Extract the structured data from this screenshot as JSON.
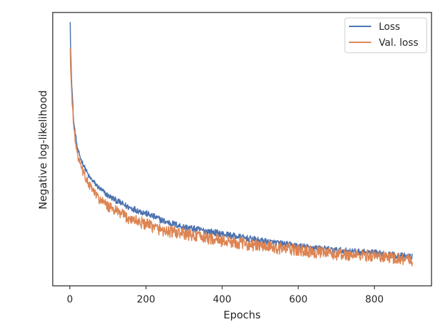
{
  "chart_data": {
    "type": "line",
    "xlabel": "Epochs",
    "ylabel": "Negative log-likelihood",
    "xlim": [
      -45,
      950
    ],
    "ylim": [
      0,
      1
    ],
    "x_ticks": [
      {
        "value": 0,
        "label": "0"
      },
      {
        "value": 200,
        "label": "200"
      },
      {
        "value": 400,
        "label": "400"
      },
      {
        "value": 600,
        "label": "600"
      },
      {
        "value": 800,
        "label": "800"
      }
    ],
    "y_tick_labels_shown": false,
    "grid": false,
    "legend_position": "top-right",
    "epochs": [
      1,
      900
    ],
    "series": [
      {
        "name": "Loss",
        "color": "#4c72b0",
        "start_value": 0.965,
        "end_value": 0.105,
        "noise": 0.012,
        "trend": [
          [
            1,
            0.965
          ],
          [
            2,
            0.86
          ],
          [
            5,
            0.74
          ],
          [
            10,
            0.6
          ],
          [
            20,
            0.5
          ],
          [
            30,
            0.46
          ],
          [
            50,
            0.4
          ],
          [
            75,
            0.36
          ],
          [
            100,
            0.33
          ],
          [
            150,
            0.29
          ],
          [
            200,
            0.265
          ],
          [
            250,
            0.235
          ],
          [
            300,
            0.215
          ],
          [
            400,
            0.19
          ],
          [
            500,
            0.165
          ],
          [
            600,
            0.145
          ],
          [
            700,
            0.13
          ],
          [
            800,
            0.12
          ],
          [
            900,
            0.105
          ]
        ]
      },
      {
        "name": "Val. loss",
        "color": "#dd8452",
        "start_value": 0.87,
        "end_value": 0.095,
        "noise": 0.022,
        "trend": [
          [
            1,
            0.87
          ],
          [
            2,
            0.8
          ],
          [
            5,
            0.7
          ],
          [
            10,
            0.58
          ],
          [
            20,
            0.48
          ],
          [
            30,
            0.43
          ],
          [
            50,
            0.37
          ],
          [
            75,
            0.32
          ],
          [
            100,
            0.29
          ],
          [
            150,
            0.25
          ],
          [
            200,
            0.225
          ],
          [
            250,
            0.2
          ],
          [
            300,
            0.19
          ],
          [
            400,
            0.165
          ],
          [
            500,
            0.145
          ],
          [
            600,
            0.13
          ],
          [
            700,
            0.115
          ],
          [
            800,
            0.11
          ],
          [
            900,
            0.095
          ]
        ]
      }
    ]
  }
}
